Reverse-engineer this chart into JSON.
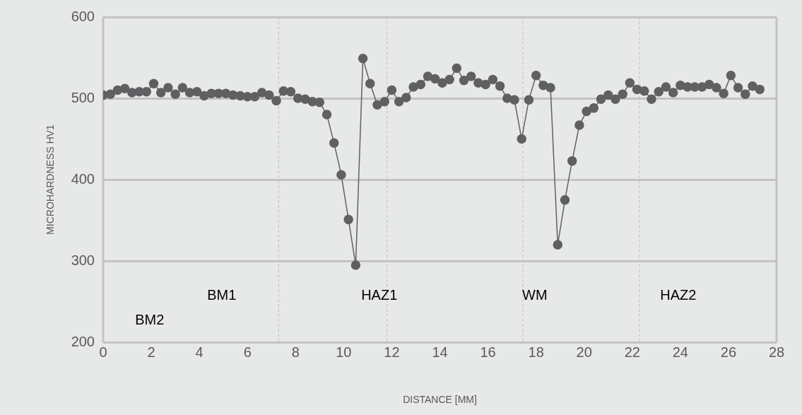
{
  "chart_data": {
    "type": "line",
    "xlabel": "DISTANCE [MM]",
    "ylabel": "MICROHARDNESS HV1",
    "xlim": [
      0,
      28
    ],
    "xticks": [
      0,
      2,
      4,
      6,
      8,
      10,
      12,
      14,
      16,
      18,
      20,
      22,
      24,
      26,
      28
    ],
    "ylim": [
      200,
      600
    ],
    "yticks": [
      200,
      300,
      400,
      500,
      600
    ],
    "grid": "y",
    "marker": "circle",
    "line_style": "solid",
    "series": [
      {
        "color": "#5f6062",
        "x": [
          0,
          0.3,
          0.6,
          0.9,
          1.2,
          1.5,
          1.8,
          2.1,
          2.4,
          2.7,
          3.0,
          3.3,
          3.6,
          3.9,
          4.2,
          4.5,
          4.8,
          5.1,
          5.4,
          5.7,
          6.0,
          6.3,
          6.6,
          6.9,
          7.2,
          7.5,
          7.8,
          8.1,
          8.4,
          8.7,
          9.0,
          9.3,
          9.6,
          9.9,
          10.2,
          10.5,
          10.8,
          11.1,
          11.4,
          11.7,
          12.0,
          12.3,
          12.6,
          12.9,
          13.2,
          13.5,
          13.8,
          14.1,
          14.4,
          14.7,
          15.0,
          15.3,
          15.6,
          15.9,
          16.2,
          16.5,
          16.8,
          17.1,
          17.4,
          17.7,
          18.0,
          18.3,
          18.6,
          18.9,
          19.2,
          19.5,
          19.8,
          20.1,
          20.4,
          20.7,
          21.0,
          21.3,
          21.6,
          21.9,
          22.2,
          22.5,
          22.8,
          23.1,
          23.4,
          23.7,
          24.0,
          24.3,
          24.6,
          24.9,
          25.2,
          25.5,
          25.8,
          26.1,
          26.4,
          26.7,
          27.0,
          27.3
        ],
        "values": [
          504,
          505,
          510,
          512,
          507,
          508,
          508,
          518,
          507,
          513,
          505,
          513,
          507,
          508,
          503,
          506,
          506,
          506,
          504,
          503,
          502,
          502,
          507,
          504,
          497,
          509,
          508,
          500,
          499,
          496,
          495,
          480,
          445,
          406,
          351,
          295,
          549,
          518,
          492,
          496,
          510,
          496,
          501,
          514,
          517,
          527,
          524,
          519,
          523,
          537,
          522,
          527,
          519,
          517,
          523,
          515,
          500,
          498,
          450,
          498,
          528,
          516,
          513,
          320,
          375,
          423,
          467,
          484,
          488,
          499,
          504,
          499,
          505,
          519,
          511,
          509,
          499,
          508,
          514,
          507,
          516,
          514,
          514,
          514,
          517,
          513,
          506,
          528,
          513,
          505,
          515,
          511
        ]
      }
    ],
    "ref_lines": [
      {
        "axis": "x",
        "value": 7.3,
        "color": "#bfbfbf",
        "line_style": "dashed"
      },
      {
        "axis": "x",
        "value": 11.8,
        "color": "#bfbfbf",
        "line_style": "dashed"
      },
      {
        "axis": "x",
        "value": 17.45,
        "color": "#bfbfbf",
        "line_style": "dashed"
      },
      {
        "axis": "x",
        "value": 22.3,
        "color": "#bfbfbf",
        "line_style": "dashed"
      }
    ],
    "annotations": [
      "BM2",
      "BM1",
      "HAZ1",
      "WM",
      "HAZ2"
    ]
  }
}
